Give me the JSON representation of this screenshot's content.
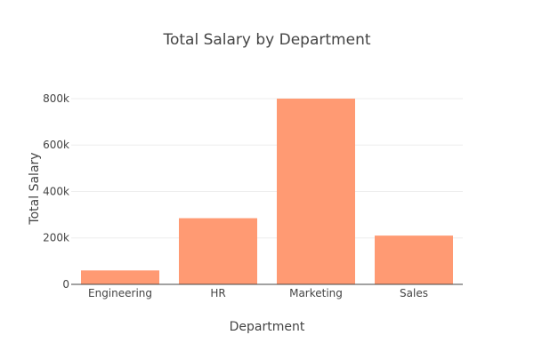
{
  "chart_data": {
    "type": "bar",
    "title": "Total Salary by Department",
    "xlabel": "Department",
    "ylabel": "Total Salary",
    "categories": [
      "Engineering",
      "HR",
      "Marketing",
      "Sales"
    ],
    "values": [
      60000,
      285000,
      800000,
      210000
    ],
    "ylim": [
      0,
      842000
    ],
    "yticks": [
      0,
      200000,
      400000,
      600000,
      800000
    ],
    "ytick_labels": [
      "0",
      "200k",
      "400k",
      "600k",
      "800k"
    ],
    "grid": true,
    "bar_color": "#ff9a73"
  }
}
